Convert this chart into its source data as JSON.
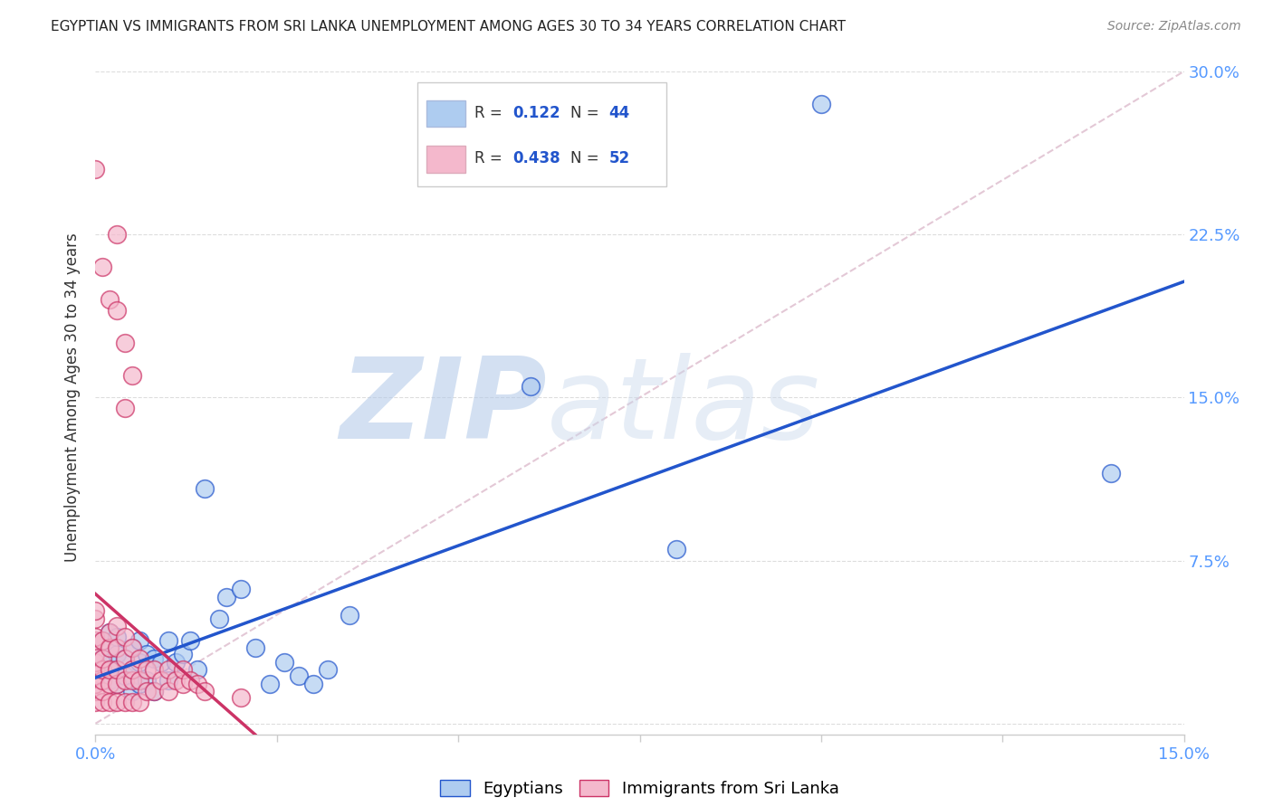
{
  "title": "EGYPTIAN VS IMMIGRANTS FROM SRI LANKA UNEMPLOYMENT AMONG AGES 30 TO 34 YEARS CORRELATION CHART",
  "source": "Source: ZipAtlas.com",
  "tick_color": "#5599ff",
  "ylabel": "Unemployment Among Ages 30 to 34 years",
  "xlim": [
    0.0,
    0.15
  ],
  "ylim": [
    -0.005,
    0.305
  ],
  "xticks": [
    0.0,
    0.025,
    0.05,
    0.075,
    0.1,
    0.125,
    0.15
  ],
  "yticks": [
    0.0,
    0.075,
    0.15,
    0.225,
    0.3
  ],
  "xticklabels": [
    "0.0%",
    "",
    "",
    "",
    "",
    "",
    "15.0%"
  ],
  "yticklabels_right": [
    "",
    "7.5%",
    "15.0%",
    "22.5%",
    "30.0%"
  ],
  "blue_color": "#aeccf0",
  "pink_color": "#f4b8cc",
  "blue_line_color": "#2255cc",
  "pink_line_color": "#cc3366",
  "diag_color": "#ddbbcc",
  "watermark_color": "#c8d8f0",
  "egyptians_x": [
    0.001,
    0.001,
    0.001,
    0.002,
    0.002,
    0.002,
    0.003,
    0.003,
    0.003,
    0.003,
    0.004,
    0.004,
    0.005,
    0.005,
    0.005,
    0.006,
    0.006,
    0.006,
    0.007,
    0.007,
    0.008,
    0.008,
    0.009,
    0.01,
    0.01,
    0.011,
    0.012,
    0.013,
    0.014,
    0.015,
    0.017,
    0.018,
    0.02,
    0.022,
    0.024,
    0.026,
    0.028,
    0.03,
    0.032,
    0.035,
    0.06,
    0.08,
    0.1,
    0.14
  ],
  "egyptians_y": [
    0.025,
    0.03,
    0.038,
    0.02,
    0.028,
    0.042,
    0.018,
    0.025,
    0.032,
    0.04,
    0.022,
    0.03,
    0.015,
    0.025,
    0.035,
    0.018,
    0.028,
    0.038,
    0.02,
    0.032,
    0.015,
    0.03,
    0.028,
    0.02,
    0.038,
    0.028,
    0.032,
    0.038,
    0.025,
    0.108,
    0.048,
    0.058,
    0.062,
    0.035,
    0.018,
    0.028,
    0.022,
    0.018,
    0.025,
    0.05,
    0.155,
    0.08,
    0.285,
    0.115
  ],
  "srilanka_x": [
    0.0,
    0.0,
    0.0,
    0.0,
    0.0,
    0.0,
    0.0,
    0.0,
    0.0,
    0.0,
    0.0,
    0.001,
    0.001,
    0.001,
    0.001,
    0.001,
    0.001,
    0.002,
    0.002,
    0.002,
    0.002,
    0.002,
    0.003,
    0.003,
    0.003,
    0.003,
    0.003,
    0.004,
    0.004,
    0.004,
    0.004,
    0.005,
    0.005,
    0.005,
    0.005,
    0.006,
    0.006,
    0.006,
    0.007,
    0.007,
    0.008,
    0.008,
    0.009,
    0.01,
    0.01,
    0.011,
    0.012,
    0.012,
    0.013,
    0.014,
    0.015,
    0.02
  ],
  "srilanka_y": [
    0.01,
    0.015,
    0.018,
    0.022,
    0.025,
    0.028,
    0.032,
    0.038,
    0.04,
    0.048,
    0.052,
    0.01,
    0.015,
    0.02,
    0.025,
    0.03,
    0.038,
    0.01,
    0.018,
    0.025,
    0.035,
    0.042,
    0.01,
    0.018,
    0.025,
    0.035,
    0.045,
    0.01,
    0.02,
    0.03,
    0.04,
    0.01,
    0.02,
    0.025,
    0.035,
    0.01,
    0.02,
    0.03,
    0.015,
    0.025,
    0.015,
    0.025,
    0.02,
    0.015,
    0.025,
    0.02,
    0.018,
    0.025,
    0.02,
    0.018,
    0.015,
    0.012
  ],
  "srilanka_outliers_x": [
    0.0,
    0.001,
    0.002,
    0.003,
    0.004,
    0.005,
    0.003,
    0.004
  ],
  "srilanka_outliers_y": [
    0.255,
    0.21,
    0.195,
    0.19,
    0.175,
    0.16,
    0.225,
    0.145
  ]
}
